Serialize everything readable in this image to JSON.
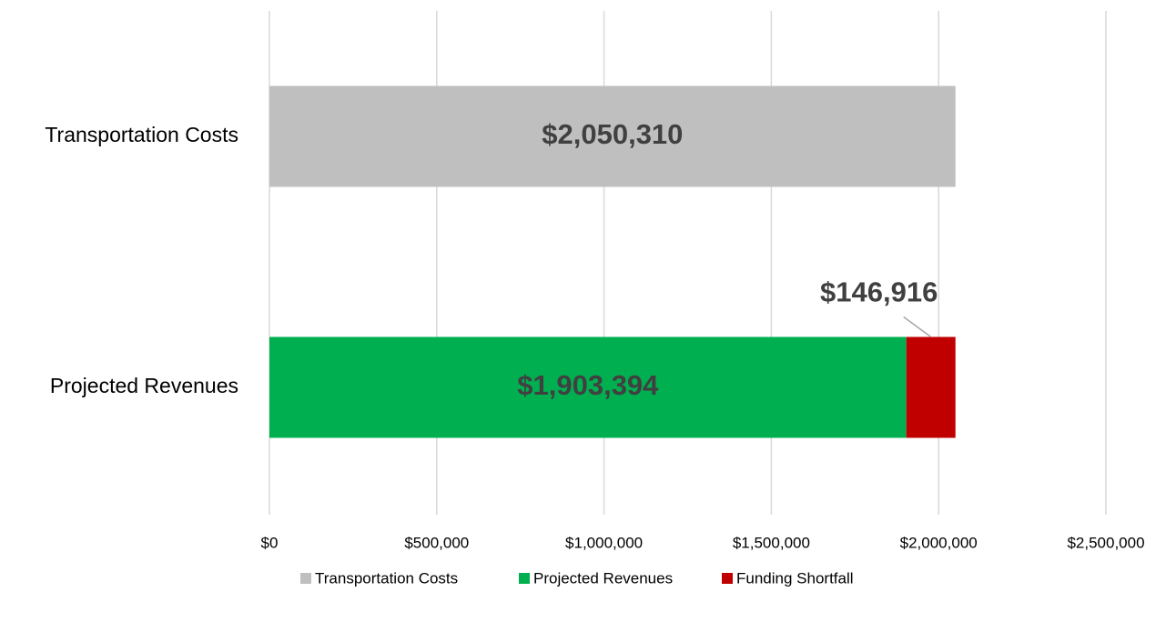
{
  "chart_data": {
    "type": "stacked-bar-horizontal",
    "categories": [
      "Transportation Costs",
      "Projected Revenues"
    ],
    "series": [
      {
        "name": "Transportation Costs",
        "color": "#bfbfbf",
        "values": [
          2050310,
          null
        ],
        "value_labels": [
          "$2,050,310",
          null
        ]
      },
      {
        "name": "Projected Revenues",
        "color": "#00b050",
        "values": [
          null,
          1903394
        ],
        "value_labels": [
          null,
          "$1,903,394"
        ]
      },
      {
        "name": "Funding Shortfall",
        "color": "#c00000",
        "values": [
          null,
          146916
        ],
        "value_labels": [
          null,
          "$146,916"
        ]
      }
    ],
    "xlim": [
      0,
      2500000
    ],
    "xticks": [
      {
        "value": 0,
        "label": "$0"
      },
      {
        "value": 500000,
        "label": "$500,000"
      },
      {
        "value": 1000000,
        "label": "$1,000,000"
      },
      {
        "value": 1500000,
        "label": "$1,500,000"
      },
      {
        "value": 2000000,
        "label": "$2,000,000"
      },
      {
        "value": 2500000,
        "label": "$2,500,000"
      }
    ],
    "grid": true,
    "legend": "bottom"
  }
}
